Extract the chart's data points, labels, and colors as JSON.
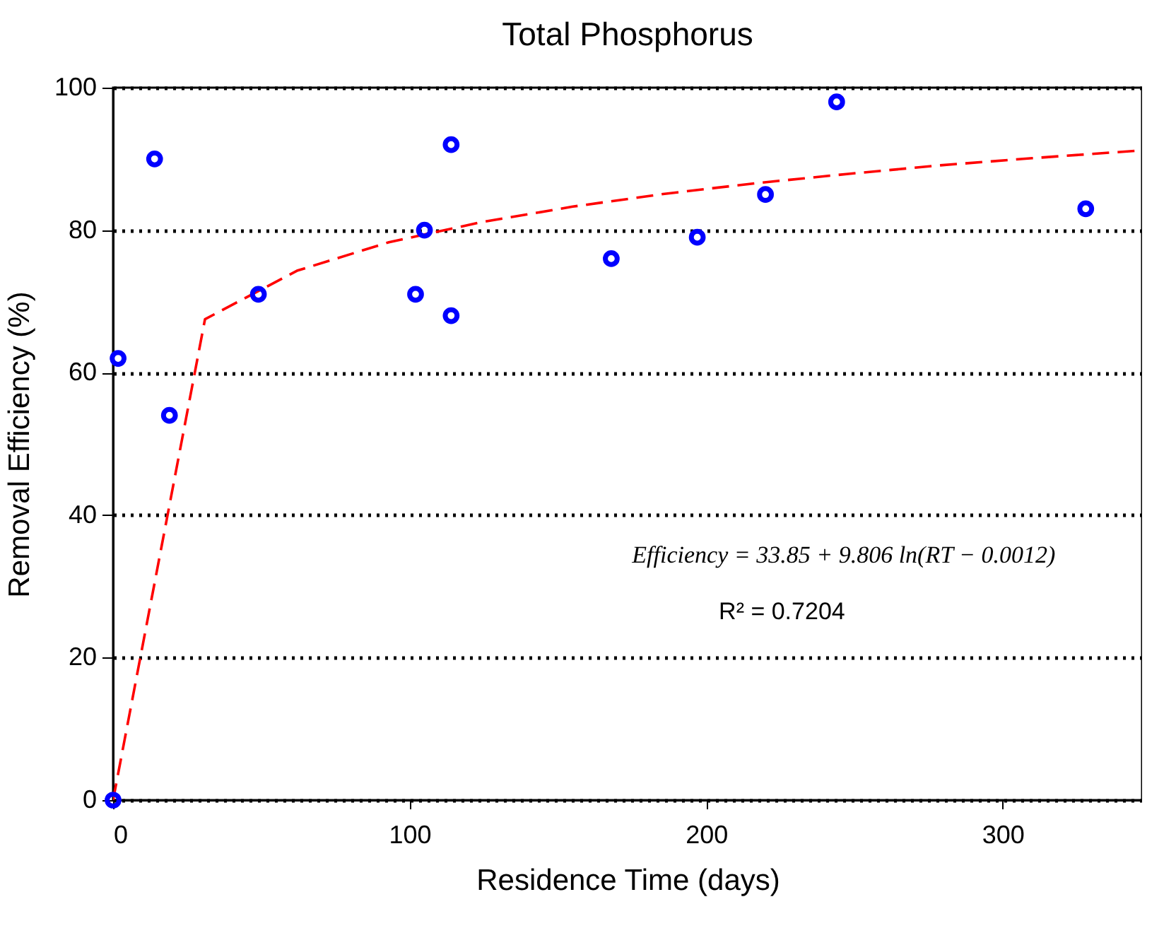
{
  "chart_data": {
    "type": "scatter",
    "title": "Total Phosphorus",
    "xlabel": "Residence Time (days)",
    "ylabel": "Removal Efficiency (%)",
    "xlim": [
      0,
      347
    ],
    "xticks": [
      0,
      100,
      200,
      300
    ],
    "ylim": [
      0,
      100
    ],
    "yticks": [
      0,
      20,
      40,
      60,
      80,
      100
    ],
    "grid": "y",
    "marker": "circle",
    "series": [
      {
        "color": "#0000ff",
        "x": [
          0,
          1.7,
          14,
          19,
          49,
          102,
          105,
          114,
          114,
          168,
          197,
          220,
          244,
          328
        ],
        "values": [
          0,
          62,
          90,
          54,
          71,
          71,
          80,
          92,
          68,
          76,
          79,
          85,
          98,
          83
        ]
      },
      {
        "type": "line",
        "line_style": "dashed",
        "marker": "none",
        "color": "#ff0000",
        "x": [
          0,
          31,
          62,
          93,
          124,
          155,
          186,
          217,
          248,
          279,
          310,
          347
        ],
        "values": [
          0,
          67.5,
          74.3,
          78.3,
          81.1,
          83.3,
          85.1,
          86.6,
          87.9,
          89.1,
          90.1,
          91.2
        ]
      }
    ],
    "annotations": [
      "Efficiency = 33.85 + 9.806 ln(RT − 0.0012)",
      "R² = 0.7204"
    ]
  }
}
